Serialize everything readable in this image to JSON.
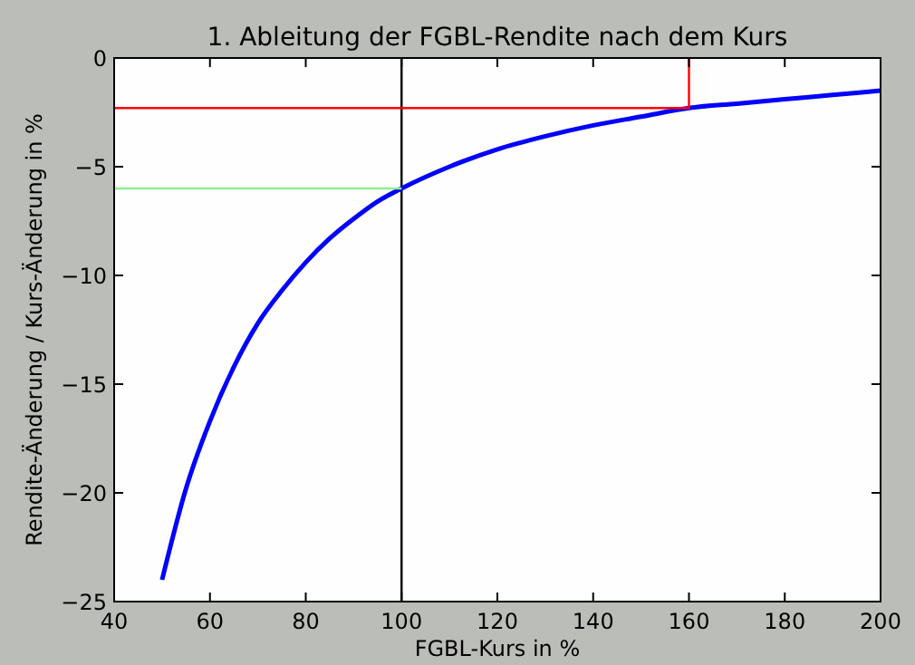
{
  "chart_data": {
    "type": "line",
    "title": "1. Ableitung der FGBL-Rendite nach dem Kurs",
    "xlabel": "FGBL-Kurs in %",
    "ylabel": "Rendite-Änderung / Kurs-Änderung in %",
    "xlim": [
      40,
      200
    ],
    "xticks": [
      40,
      60,
      80,
      100,
      120,
      140,
      160,
      180,
      200
    ],
    "ylim": [
      -25,
      0
    ],
    "yticks": [
      -25,
      -20,
      -15,
      -10,
      -5,
      0
    ],
    "marker": "none",
    "line_style": "solid",
    "series": [
      {
        "color": "#0000ff",
        "x": [
          50,
          55,
          60,
          65,
          70,
          75,
          80,
          85,
          90,
          95,
          100,
          110,
          120,
          130,
          140,
          150,
          160,
          170,
          180,
          190,
          200
        ],
        "values": [
          -24,
          -19.8,
          -16.7,
          -14.2,
          -12.2,
          -10.7,
          -9.4,
          -8.3,
          -7.4,
          -6.6,
          -6,
          -5,
          -4.2,
          -3.6,
          -3.1,
          -2.7,
          -2.3,
          -2.1,
          -1.9,
          -1.7,
          -1.5
        ]
      },
      {
        "color": "#ff0000",
        "x": [
          40,
          160,
          160
        ],
        "values": [
          -2.3,
          -2.3,
          0
        ]
      },
      {
        "color": "#90ee90",
        "x": [
          40,
          100
        ],
        "values": [
          -6,
          -6
        ]
      }
    ],
    "ref_lines": [
      {
        "axis": "x",
        "value": 100,
        "color": "#000000"
      }
    ]
  }
}
